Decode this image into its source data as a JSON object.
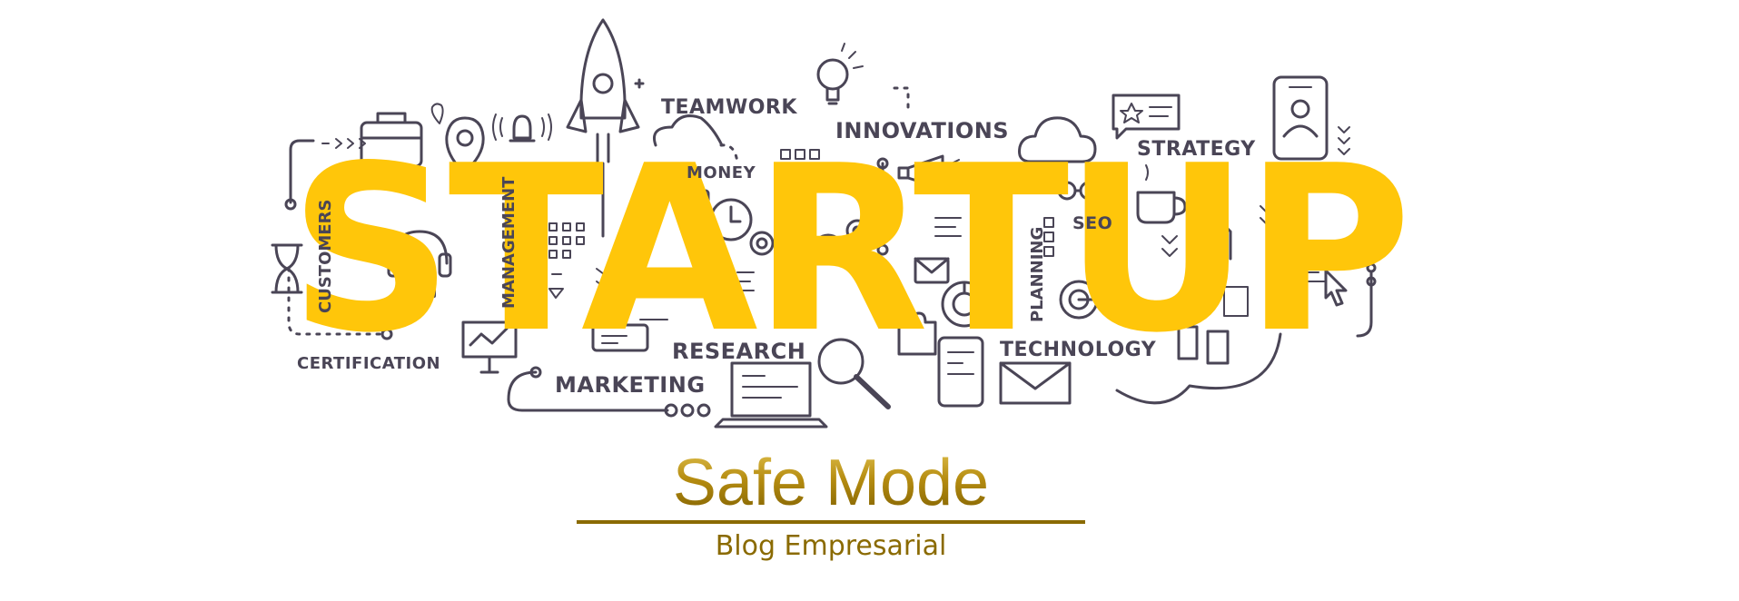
{
  "main_word": "STARTUP",
  "words": {
    "teamwork": "TEAMWORK",
    "innovations": "INNOVATIONS",
    "strategy": "STRATEGY",
    "money": "MONEY",
    "seo": "SEO",
    "research": "RESEARCH",
    "technology": "TECHNOLOGY",
    "marketing": "MARKETING",
    "certification": "CERTIFICATION",
    "customers": "CUSTOMERS",
    "management": "MANAGEMENT",
    "planning": "PLANNING"
  },
  "brand": {
    "title": "Safe Mode",
    "subtitle": "Blog Empresarial"
  },
  "colors": {
    "accent_yellow": "#ffc60a",
    "line_art": "#4a4556",
    "gold": "#b08a10"
  },
  "icons": [
    "rocket-icon",
    "briefcase-icon",
    "map-pin-icon",
    "bell-icon",
    "lightbulb-icon",
    "cloud-icon",
    "chat-star-icon",
    "smartphone-user-icon",
    "hourglass-icon",
    "headphones-icon",
    "clock-icon",
    "gears-icon",
    "megaphone-icon",
    "pen-icon",
    "envelope-icon",
    "pie-chart-icon",
    "coffee-cup-icon",
    "target-icon",
    "documents-icon",
    "cursor-icon",
    "puzzle-icon",
    "magnifier-icon",
    "tablet-icon",
    "laptop-icon",
    "presentation-board-icon",
    "glasses-icon",
    "wallet-icon"
  ]
}
